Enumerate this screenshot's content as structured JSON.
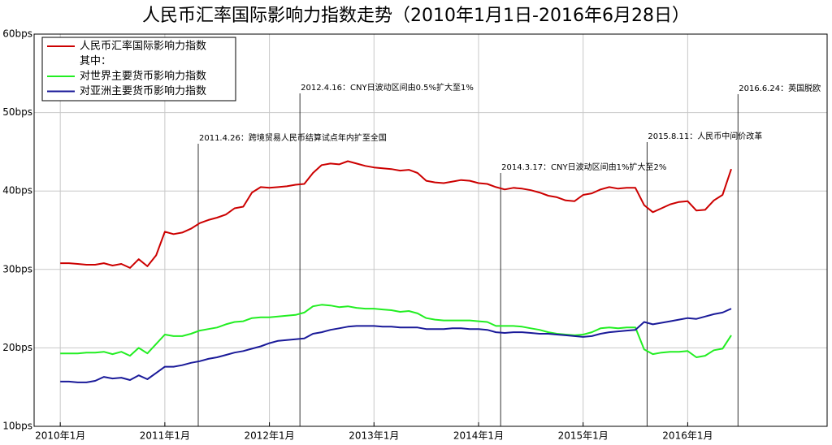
{
  "chart_data": {
    "type": "line",
    "title": "人民币汇率国际影响力指数走势（2010年1月1日-2016年6月28日）",
    "x": [
      "2010-01",
      "2010-02",
      "2010-03",
      "2010-04",
      "2010-05",
      "2010-06",
      "2010-07",
      "2010-08",
      "2010-09",
      "2010-10",
      "2010-11",
      "2010-12",
      "2011-01",
      "2011-02",
      "2011-03",
      "2011-04",
      "2011-05",
      "2011-06",
      "2011-07",
      "2011-08",
      "2011-09",
      "2011-10",
      "2011-11",
      "2011-12",
      "2012-01",
      "2012-02",
      "2012-03",
      "2012-04",
      "2012-05",
      "2012-06",
      "2012-07",
      "2012-08",
      "2012-09",
      "2012-10",
      "2012-11",
      "2012-12",
      "2013-01",
      "2013-02",
      "2013-03",
      "2013-04",
      "2013-05",
      "2013-06",
      "2013-07",
      "2013-08",
      "2013-09",
      "2013-10",
      "2013-11",
      "2013-12",
      "2014-01",
      "2014-02",
      "2014-03",
      "2014-04",
      "2014-05",
      "2014-06",
      "2014-07",
      "2014-08",
      "2014-09",
      "2014-10",
      "2014-11",
      "2014-12",
      "2015-01",
      "2015-02",
      "2015-03",
      "2015-04",
      "2015-05",
      "2015-06",
      "2015-07",
      "2015-08",
      "2015-09",
      "2015-10",
      "2015-11",
      "2015-12",
      "2016-01",
      "2016-02",
      "2016-03",
      "2016-04",
      "2016-05",
      "2016-06"
    ],
    "series": [
      {
        "name": "人民币汇率国际影响力指数",
        "color": "#cc0000",
        "values": [
          30.8,
          30.8,
          30.7,
          30.6,
          30.6,
          30.8,
          30.5,
          30.7,
          30.2,
          31.3,
          30.4,
          31.8,
          34.8,
          34.5,
          34.7,
          35.2,
          35.9,
          36.3,
          36.6,
          37.0,
          37.8,
          38.0,
          39.8,
          40.5,
          40.4,
          40.5,
          40.6,
          40.8,
          40.9,
          42.3,
          43.3,
          43.5,
          43.4,
          43.8,
          43.5,
          43.2,
          43.0,
          42.9,
          42.8,
          42.6,
          42.7,
          42.3,
          41.3,
          41.1,
          41.0,
          41.2,
          41.4,
          41.3,
          41.0,
          40.9,
          40.5,
          40.2,
          40.4,
          40.3,
          40.1,
          39.8,
          39.4,
          39.2,
          38.8,
          38.7,
          39.5,
          39.7,
          40.2,
          40.5,
          40.3,
          40.4,
          40.4,
          38.2,
          37.3,
          37.8,
          38.3,
          38.6,
          38.7,
          37.5,
          37.6,
          38.8,
          39.5,
          42.8
        ]
      },
      {
        "name": "对世界主要货币影响力指数",
        "color": "#22ee22",
        "values": [
          19.3,
          19.3,
          19.3,
          19.4,
          19.4,
          19.5,
          19.2,
          19.5,
          19.0,
          20.0,
          19.3,
          20.5,
          21.7,
          21.5,
          21.5,
          21.8,
          22.2,
          22.4,
          22.6,
          23.0,
          23.3,
          23.4,
          23.8,
          23.9,
          23.9,
          24.0,
          24.1,
          24.2,
          24.5,
          25.3,
          25.5,
          25.4,
          25.2,
          25.3,
          25.1,
          25.0,
          25.0,
          24.9,
          24.8,
          24.6,
          24.7,
          24.4,
          23.8,
          23.6,
          23.5,
          23.5,
          23.5,
          23.5,
          23.4,
          23.3,
          22.8,
          22.8,
          22.8,
          22.7,
          22.5,
          22.3,
          22.0,
          21.8,
          21.7,
          21.6,
          21.7,
          22.0,
          22.5,
          22.6,
          22.5,
          22.6,
          22.6,
          19.8,
          19.2,
          19.4,
          19.5,
          19.5,
          19.6,
          18.8,
          19.0,
          19.7,
          19.9,
          21.6
        ]
      },
      {
        "name": "对亚洲主要货币影响力指数",
        "color": "#1a1a99",
        "values": [
          15.7,
          15.7,
          15.6,
          15.6,
          15.8,
          16.3,
          16.1,
          16.2,
          15.9,
          16.5,
          16.0,
          16.8,
          17.6,
          17.6,
          17.8,
          18.1,
          18.3,
          18.6,
          18.8,
          19.1,
          19.4,
          19.6,
          19.9,
          20.2,
          20.6,
          20.9,
          21.0,
          21.1,
          21.2,
          21.8,
          22.0,
          22.3,
          22.5,
          22.7,
          22.8,
          22.8,
          22.8,
          22.7,
          22.7,
          22.6,
          22.6,
          22.6,
          22.4,
          22.4,
          22.4,
          22.5,
          22.5,
          22.4,
          22.4,
          22.3,
          22.0,
          21.9,
          22.0,
          22.0,
          21.9,
          21.8,
          21.8,
          21.7,
          21.6,
          21.5,
          21.4,
          21.5,
          21.8,
          22.0,
          22.1,
          22.2,
          22.3,
          23.3,
          23.0,
          23.2,
          23.4,
          23.6,
          23.8,
          23.7,
          24.0,
          24.3,
          24.5,
          25.0
        ]
      }
    ],
    "legend_subheading": "其中：",
    "legend_position": "upper left",
    "xlim": [
      "2009-10",
      "2017-05"
    ],
    "xticks": [
      {
        "value": "2010-01",
        "label": "2010年1月"
      },
      {
        "value": "2011-01",
        "label": "2011年1月"
      },
      {
        "value": "2012-01",
        "label": "2012年1月"
      },
      {
        "value": "2013-01",
        "label": "2013年1月"
      },
      {
        "value": "2014-01",
        "label": "2014年1月"
      },
      {
        "value": "2015-01",
        "label": "2015年1月"
      },
      {
        "value": "2016-01",
        "label": "2016年1月"
      }
    ],
    "ylim": [
      10,
      60
    ],
    "yticks": [
      {
        "value": 10,
        "label": "10bps"
      },
      {
        "value": 20,
        "label": "20bps"
      },
      {
        "value": 30,
        "label": "30bps"
      },
      {
        "value": 40,
        "label": "40bps"
      },
      {
        "value": 50,
        "label": "50bps"
      },
      {
        "value": 60,
        "label": "60bps"
      }
    ],
    "grid": true,
    "annotations": [
      {
        "x": "2011-04-26",
        "text": "2011.4.26：跨境贸易人民币结算试点年内扩至全国"
      },
      {
        "x": "2012-04-16",
        "text": "2012.4.16：CNY日波动区间由0.5%扩大至1%"
      },
      {
        "x": "2014-03-17",
        "text": "2014.3.17：CNY日波动区间由1%扩大至2%"
      },
      {
        "x": "2015-08-11",
        "text": "2015.8.11：人民币中间价改革"
      },
      {
        "x": "2016-06-24",
        "text": "2016.6.24：英国脱欧"
      }
    ]
  }
}
